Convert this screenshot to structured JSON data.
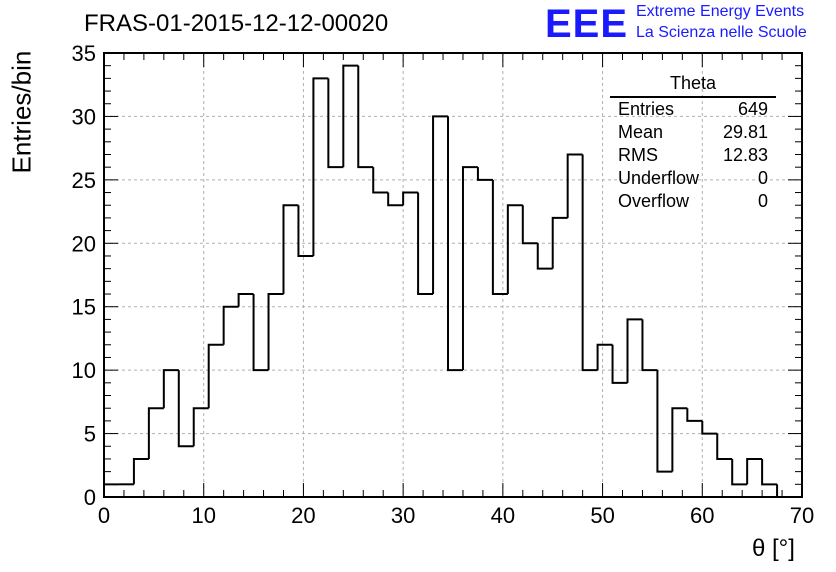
{
  "header": {
    "title": "FRAS-01-2015-12-12-00020",
    "logo_text": "EEE",
    "brand_line1": "Extreme Energy Events",
    "brand_line2": "La Scienza nelle Scuole"
  },
  "stats": {
    "title": "Theta",
    "rows": [
      {
        "label": "Entries",
        "value": "649"
      },
      {
        "label": "Mean",
        "value": "29.81"
      },
      {
        "label": "RMS",
        "value": "12.83"
      },
      {
        "label": "Underflow",
        "value": "0"
      },
      {
        "label": "Overflow",
        "value": "0"
      }
    ]
  },
  "chart_data": {
    "type": "bar",
    "style": "step-histogram",
    "title": "FRAS-01-2015-12-12-00020",
    "xlabel": "θ [°]",
    "ylabel": "Entries/bin",
    "xlim": [
      0,
      70
    ],
    "ylim": [
      0,
      35
    ],
    "xticks": [
      "0",
      "10",
      "20",
      "30",
      "40",
      "50",
      "60",
      "70"
    ],
    "yticks": [
      "0",
      "5",
      "10",
      "15",
      "20",
      "25",
      "30",
      "35"
    ],
    "grid": true,
    "bin_width": 1.5,
    "bin_start": 0,
    "values": [
      1,
      1,
      3,
      7,
      10,
      4,
      7,
      12,
      15,
      16,
      10,
      16,
      23,
      19,
      33,
      26,
      34,
      26,
      24,
      23,
      24,
      16,
      30,
      10,
      26,
      25,
      16,
      23,
      20,
      18,
      22,
      27,
      10,
      12,
      9,
      14,
      10,
      2,
      7,
      6,
      5,
      3,
      1,
      3,
      1
    ],
    "line_color": "#000000",
    "grid_color": "#b0b0b0",
    "legend_position": "top-right"
  }
}
